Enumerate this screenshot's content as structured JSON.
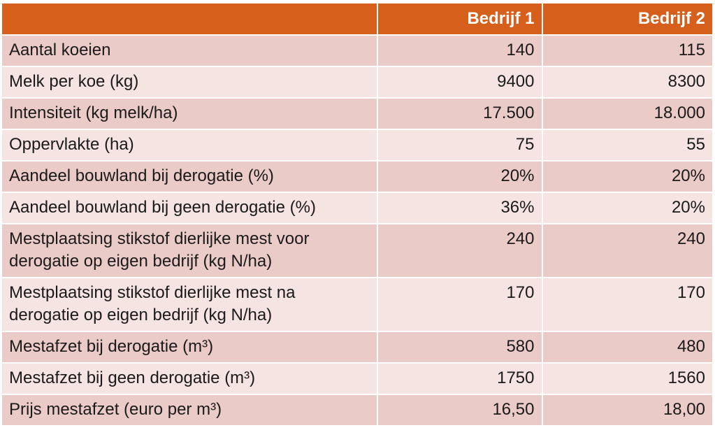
{
  "table": {
    "columns": [
      "Bedrijf 1",
      "Bedrijf 2"
    ],
    "rows": [
      [
        "Aantal koeien",
        "140",
        "115"
      ],
      [
        "Melk per koe (kg)",
        "9400",
        "8300"
      ],
      [
        "Intensiteit (kg melk/ha)",
        "17.500",
        "18.000"
      ],
      [
        "Oppervlakte (ha)",
        "75",
        "55"
      ],
      [
        "Aandeel bouwland bij derogatie (%)",
        "20%",
        "20%"
      ],
      [
        "Aandeel bouwland bij geen derogatie (%)",
        "36%",
        "20%"
      ],
      [
        "Mestplaatsing stikstof dierlijke mest voor derogatie op eigen bedrijf (kg N/ha)",
        "240",
        "240"
      ],
      [
        "Mestplaatsing stikstof dierlijke mest na derogatie op eigen bedrijf (kg N/ha)",
        "170",
        "170"
      ],
      [
        "Mestafzet bij derogatie (m³)",
        "580",
        "480"
      ],
      [
        "Mestafzet bij geen derogatie (m³)",
        "1750",
        "1560"
      ],
      [
        "Prijs mestafzet (euro per m³)",
        "16,50",
        "18,00"
      ]
    ]
  }
}
